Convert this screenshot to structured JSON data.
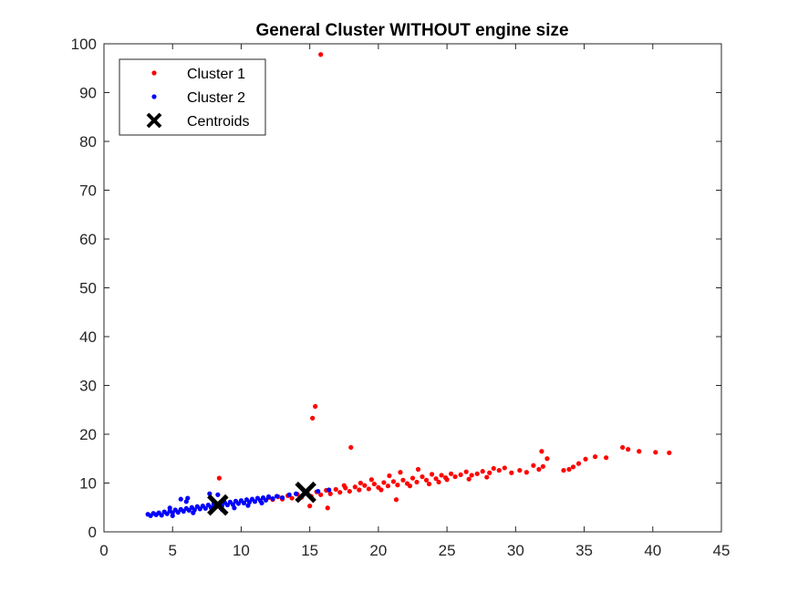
{
  "chart_data": {
    "type": "scatter",
    "title": "General Cluster WITHOUT engine size",
    "xlabel": "",
    "ylabel": "",
    "xlim": [
      0,
      45
    ],
    "ylim": [
      0,
      100
    ],
    "xticks": [
      "0",
      "5",
      "10",
      "15",
      "20",
      "25",
      "30",
      "35",
      "40",
      "45"
    ],
    "yticks": [
      "0",
      "10",
      "20",
      "30",
      "40",
      "50",
      "60",
      "70",
      "80",
      "90",
      "100"
    ],
    "grid": false,
    "legend_position": "top-left",
    "series": [
      {
        "name": "Cluster 1",
        "color": "#ff0000",
        "marker": "dot",
        "points": [
          [
            15.8,
            97.8
          ],
          [
            15.4,
            25.7
          ],
          [
            15.2,
            23.3
          ],
          [
            18.0,
            17.3
          ],
          [
            41.2,
            16.2
          ],
          [
            40.2,
            16.3
          ],
          [
            39.0,
            16.5
          ],
          [
            38.2,
            16.9
          ],
          [
            37.8,
            17.3
          ],
          [
            36.6,
            15.2
          ],
          [
            35.8,
            15.4
          ],
          [
            35.1,
            14.9
          ],
          [
            34.6,
            14.0
          ],
          [
            34.2,
            13.3
          ],
          [
            33.9,
            12.8
          ],
          [
            33.5,
            12.6
          ],
          [
            32.3,
            15.0
          ],
          [
            31.9,
            16.5
          ],
          [
            31.7,
            12.8
          ],
          [
            32.0,
            13.4
          ],
          [
            31.3,
            13.6
          ],
          [
            30.8,
            12.2
          ],
          [
            30.3,
            12.6
          ],
          [
            29.7,
            12.1
          ],
          [
            29.2,
            13.1
          ],
          [
            28.8,
            12.6
          ],
          [
            28.4,
            13.0
          ],
          [
            28.1,
            12.1
          ],
          [
            27.6,
            12.4
          ],
          [
            27.2,
            11.9
          ],
          [
            26.8,
            11.6
          ],
          [
            26.4,
            12.3
          ],
          [
            26.0,
            11.7
          ],
          [
            25.6,
            11.3
          ],
          [
            25.3,
            11.9
          ],
          [
            24.9,
            11.1
          ],
          [
            24.6,
            11.6
          ],
          [
            24.2,
            10.9
          ],
          [
            23.9,
            11.8
          ],
          [
            23.5,
            10.6
          ],
          [
            23.2,
            11.3
          ],
          [
            22.8,
            10.2
          ],
          [
            22.5,
            11.0
          ],
          [
            22.1,
            9.9
          ],
          [
            21.8,
            10.6
          ],
          [
            21.4,
            9.6
          ],
          [
            21.1,
            10.3
          ],
          [
            20.7,
            9.4
          ],
          [
            20.4,
            10.1
          ],
          [
            20.0,
            9.1
          ],
          [
            19.7,
            9.8
          ],
          [
            19.3,
            8.8
          ],
          [
            19.0,
            9.5
          ],
          [
            18.6,
            8.6
          ],
          [
            18.3,
            9.2
          ],
          [
            17.9,
            8.3
          ],
          [
            17.6,
            9.0
          ],
          [
            17.2,
            8.1
          ],
          [
            16.9,
            8.7
          ],
          [
            16.5,
            7.8
          ],
          [
            16.2,
            8.5
          ],
          [
            15.8,
            7.6
          ],
          [
            15.5,
            8.2
          ],
          [
            15.1,
            7.3
          ],
          [
            14.8,
            8.0
          ],
          [
            14.4,
            7.1
          ],
          [
            14.1,
            7.7
          ],
          [
            13.7,
            6.9
          ],
          [
            13.4,
            7.4
          ],
          [
            13.0,
            6.7
          ],
          [
            12.7,
            7.2
          ],
          [
            12.3,
            6.6
          ],
          [
            12.0,
            7.0
          ],
          [
            21.3,
            6.6
          ],
          [
            15.0,
            5.3
          ],
          [
            8.4,
            11.0
          ],
          [
            16.3,
            4.9
          ],
          [
            22.9,
            12.8
          ],
          [
            21.6,
            12.2
          ],
          [
            20.8,
            11.5
          ],
          [
            23.7,
            9.8
          ],
          [
            24.4,
            10.2
          ],
          [
            19.5,
            10.7
          ],
          [
            18.7,
            10.0
          ],
          [
            17.5,
            9.5
          ],
          [
            25.0,
            10.7
          ],
          [
            26.6,
            10.8
          ],
          [
            27.9,
            11.2
          ],
          [
            22.3,
            9.4
          ],
          [
            20.2,
            8.6
          ]
        ]
      },
      {
        "name": "Cluster 2",
        "color": "#0000ff",
        "marker": "dot",
        "points": [
          [
            3.2,
            3.6
          ],
          [
            3.4,
            3.3
          ],
          [
            3.6,
            3.8
          ],
          [
            3.8,
            3.5
          ],
          [
            4.0,
            3.9
          ],
          [
            4.2,
            3.4
          ],
          [
            4.4,
            4.1
          ],
          [
            4.6,
            3.7
          ],
          [
            4.8,
            4.3
          ],
          [
            5.0,
            3.9
          ],
          [
            5.2,
            4.5
          ],
          [
            5.4,
            4.0
          ],
          [
            5.6,
            4.6
          ],
          [
            5.8,
            4.2
          ],
          [
            6.0,
            4.8
          ],
          [
            6.2,
            4.4
          ],
          [
            6.4,
            5.0
          ],
          [
            6.6,
            4.5
          ],
          [
            6.8,
            5.2
          ],
          [
            7.0,
            4.7
          ],
          [
            7.2,
            5.3
          ],
          [
            7.4,
            4.8
          ],
          [
            7.6,
            5.5
          ],
          [
            7.8,
            5.0
          ],
          [
            8.0,
            5.7
          ],
          [
            8.2,
            5.2
          ],
          [
            8.4,
            5.8
          ],
          [
            8.6,
            5.3
          ],
          [
            8.8,
            6.0
          ],
          [
            9.0,
            5.5
          ],
          [
            9.2,
            6.1
          ],
          [
            9.4,
            5.6
          ],
          [
            9.6,
            6.3
          ],
          [
            9.8,
            5.8
          ],
          [
            10.0,
            6.4
          ],
          [
            10.2,
            5.9
          ],
          [
            10.4,
            6.6
          ],
          [
            10.6,
            6.1
          ],
          [
            10.8,
            6.7
          ],
          [
            11.0,
            6.2
          ],
          [
            11.2,
            6.9
          ],
          [
            11.4,
            6.4
          ],
          [
            11.6,
            7.0
          ],
          [
            11.8,
            6.5
          ],
          [
            12.0,
            7.2
          ],
          [
            12.3,
            6.8
          ],
          [
            12.6,
            7.3
          ],
          [
            13.0,
            7.0
          ],
          [
            13.5,
            7.6
          ],
          [
            14.0,
            7.8
          ],
          [
            14.8,
            8.2
          ],
          [
            15.6,
            8.3
          ],
          [
            16.4,
            8.6
          ],
          [
            5.6,
            6.7
          ],
          [
            6.1,
            6.9
          ],
          [
            6.0,
            6.2
          ],
          [
            7.7,
            7.8
          ],
          [
            8.3,
            7.6
          ],
          [
            4.8,
            4.9
          ],
          [
            5.0,
            3.3
          ],
          [
            6.5,
            3.9
          ],
          [
            8.6,
            4.6
          ],
          [
            9.5,
            4.9
          ],
          [
            10.5,
            5.4
          ],
          [
            11.5,
            5.9
          ]
        ]
      },
      {
        "name": "Centroids",
        "color": "#000000",
        "marker": "x",
        "points": [
          [
            8.3,
            5.5
          ],
          [
            14.7,
            8.1
          ]
        ]
      }
    ]
  }
}
